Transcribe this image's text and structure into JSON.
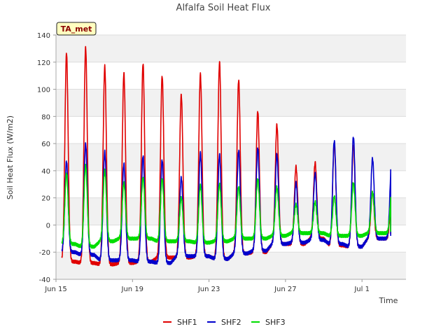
{
  "chart_data": {
    "type": "line",
    "title": "Alfalfa Soil Heat Flux",
    "xlabel": "Time",
    "ylabel": "Soil Heat Flux (W/m2)",
    "ylim": [
      -40,
      140
    ],
    "yticks": [
      -40,
      -20,
      0,
      20,
      40,
      60,
      80,
      100,
      120,
      140
    ],
    "x_unit": "days since Jun 15 00:00",
    "xlim": [
      0,
      18.3
    ],
    "xticks": [
      {
        "label": "Jun 15",
        "day": 0
      },
      {
        "label": "Jun 19",
        "day": 4
      },
      {
        "label": "Jun 23",
        "day": 8
      },
      {
        "label": "Jun 27",
        "day": 12
      },
      {
        "label": "Jul 1",
        "day": 16
      }
    ],
    "x_start_day": 0.3,
    "x_end_day": 17.5,
    "annotation": "TA_met",
    "series": [
      {
        "name": "SHF1",
        "color": "#e00000",
        "daily_peak": [
          127,
          131,
          117,
          112,
          119,
          110,
          96,
          111,
          120,
          107,
          84,
          74,
          43,
          46,
          60,
          59,
          24
        ],
        "daily_min": [
          -27,
          -28,
          -29,
          -28,
          -27,
          -24,
          -24,
          -23,
          -25,
          -21,
          -20,
          -14,
          -14,
          -10,
          -15,
          -16,
          -10
        ],
        "end_value": -7
      },
      {
        "name": "SHF2",
        "color": "#0000cc",
        "daily_peak": [
          47,
          60,
          54,
          45,
          51,
          48,
          35,
          53,
          52,
          55,
          57,
          52,
          31,
          38,
          62,
          65,
          49
        ],
        "daily_min": [
          -20,
          -22,
          -26,
          -26,
          -27,
          -28,
          -23,
          -23,
          -25,
          -21,
          -19,
          -14,
          -13,
          -11,
          -14,
          -16,
          -10
        ],
        "end_value": -8
      },
      {
        "name": "SHF3",
        "color": "#00dd00",
        "daily_peak": [
          38,
          44,
          40,
          31,
          35,
          34,
          20,
          29,
          30,
          28,
          34,
          28,
          15,
          17,
          21,
          31,
          24
        ],
        "daily_min": [
          -14,
          -16,
          -12,
          -10,
          -10,
          -12,
          -12,
          -13,
          -12,
          -10,
          -10,
          -8,
          -6,
          -6,
          -8,
          -8,
          -6
        ],
        "end_value": -5
      }
    ],
    "legend": [
      "SHF1",
      "SHF2",
      "SHF3"
    ],
    "legend_position": "bottom-center"
  }
}
